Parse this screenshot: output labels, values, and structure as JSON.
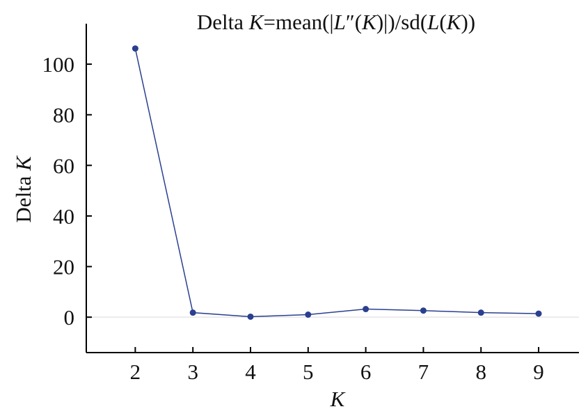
{
  "chart_data": {
    "type": "line",
    "title": {
      "prefix": "Delta ",
      "k": "K",
      "mean_open": "=mean(|",
      "l": "L",
      "dprime": "″(",
      "k2": "K",
      "mid": ")|)/sd(",
      "l2": "L",
      "paren": "(",
      "k3": "K",
      "end": "))"
    },
    "xlabel": "K",
    "ylabel": {
      "prefix": "Delta ",
      "k": "K"
    },
    "x": [
      2,
      3,
      4,
      5,
      6,
      7,
      8,
      9
    ],
    "x_tick_labels": [
      "2",
      "3",
      "4",
      "5",
      "6",
      "7",
      "8",
      "9"
    ],
    "y_ticks": [
      0,
      20,
      40,
      60,
      80,
      100
    ],
    "y_tick_labels": [
      "0",
      "20",
      "40",
      "60",
      "80",
      "100"
    ],
    "xlim": [
      1.15,
      9.7
    ],
    "ylim": [
      -14,
      116
    ],
    "series": [
      {
        "values": [
          106.2,
          1.8,
          0.2,
          1.0,
          3.2,
          2.6,
          1.8,
          1.4
        ],
        "color": "#2a3f8f"
      }
    ],
    "zero_line": true,
    "zero_line_color": "#d9d9d9",
    "grid": false,
    "legend": "none"
  }
}
